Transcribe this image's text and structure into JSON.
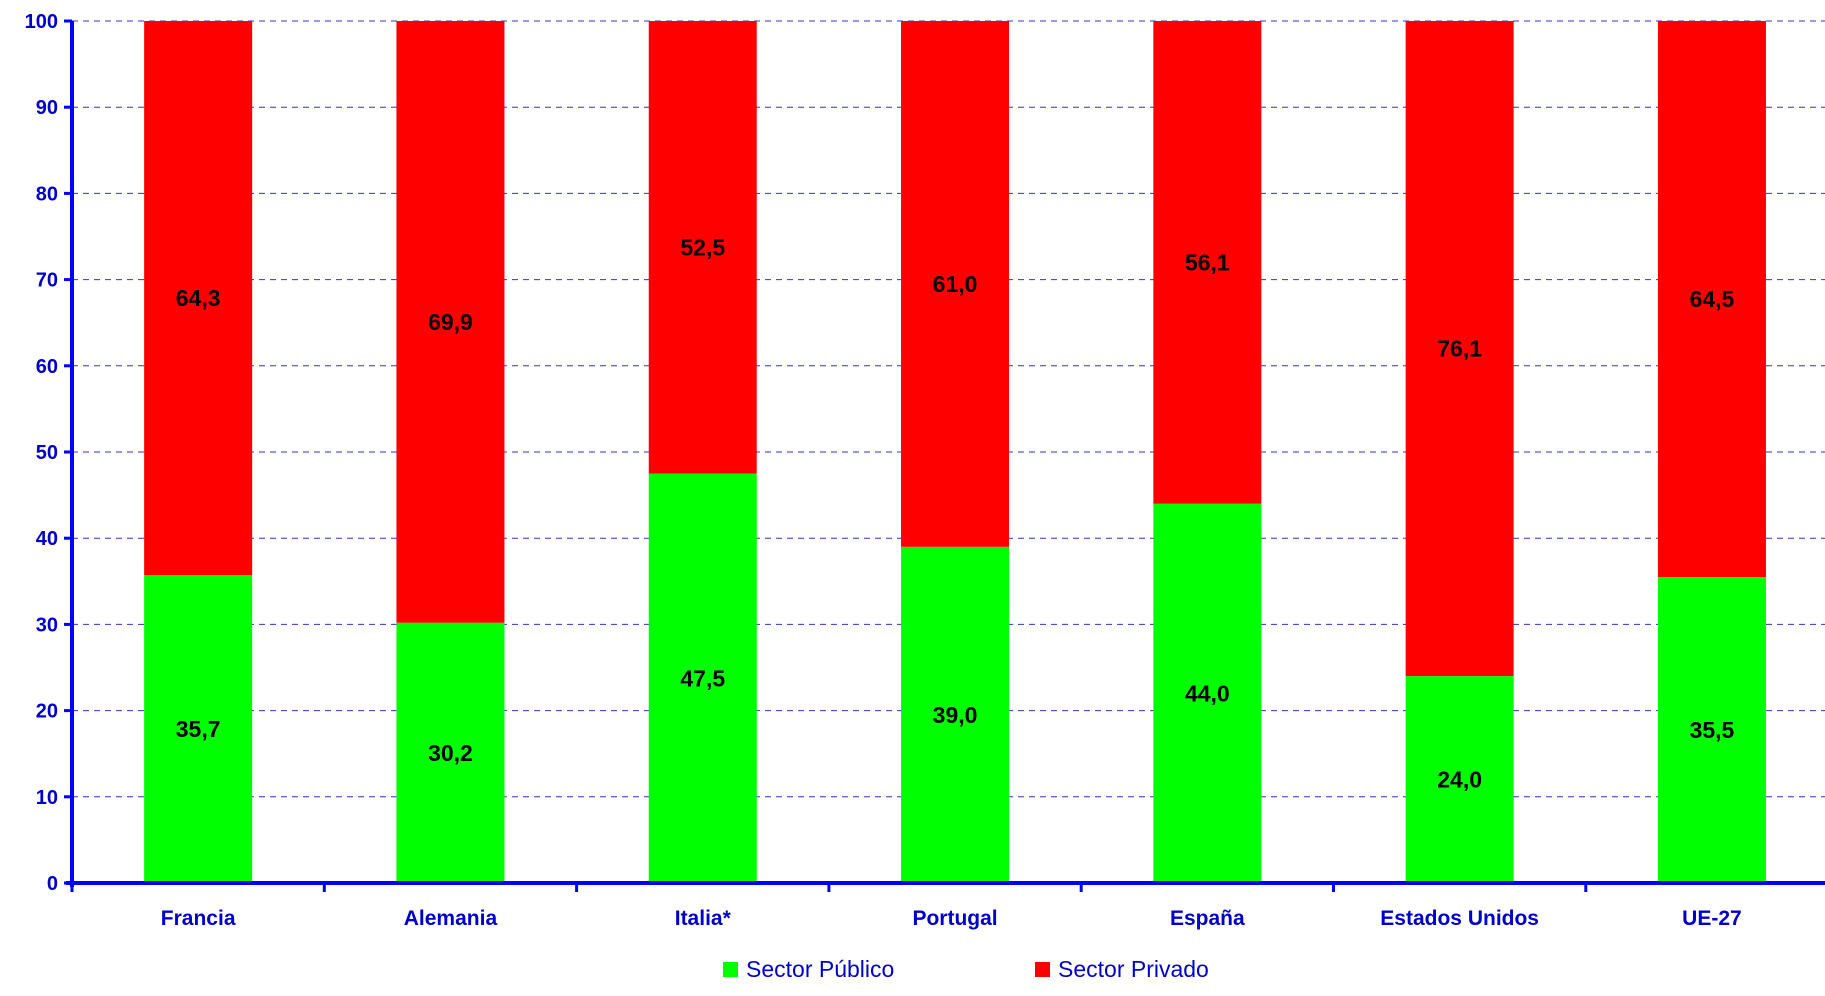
{
  "chart_data": {
    "type": "bar",
    "stacked": true,
    "percent": true,
    "categories": [
      "Francia",
      "Alemania",
      "Italia*",
      "Portugal",
      "España",
      "Estados Unidos",
      "UE-27"
    ],
    "series": [
      {
        "name": "Sector Público",
        "values": [
          35.7,
          30.2,
          47.5,
          39.0,
          44.0,
          24.0,
          35.5
        ],
        "labels": [
          "35,7",
          "30,2",
          "47,5",
          "39,0",
          "44,0",
          "24,0",
          "35,5"
        ],
        "color": "#00ff00"
      },
      {
        "name": "Sector Privado",
        "values": [
          64.3,
          69.9,
          52.5,
          61.0,
          56.1,
          76.1,
          64.5
        ],
        "labels": [
          "64,3",
          "69,9",
          "52,5",
          "61,0",
          "56,1",
          "76,1",
          "64,5"
        ],
        "color": "#ff0000"
      }
    ],
    "title": "",
    "xlabel": "",
    "ylabel": "",
    "ylim": [
      0,
      100
    ],
    "yticks": [
      0,
      10,
      20,
      30,
      40,
      50,
      60,
      70,
      80,
      90,
      100
    ],
    "grid": "horizontal-dashed",
    "legend": "bottom-center",
    "axis_color": "#0000ff",
    "grid_color": "#3333cc",
    "label_color": "#0000cc"
  }
}
